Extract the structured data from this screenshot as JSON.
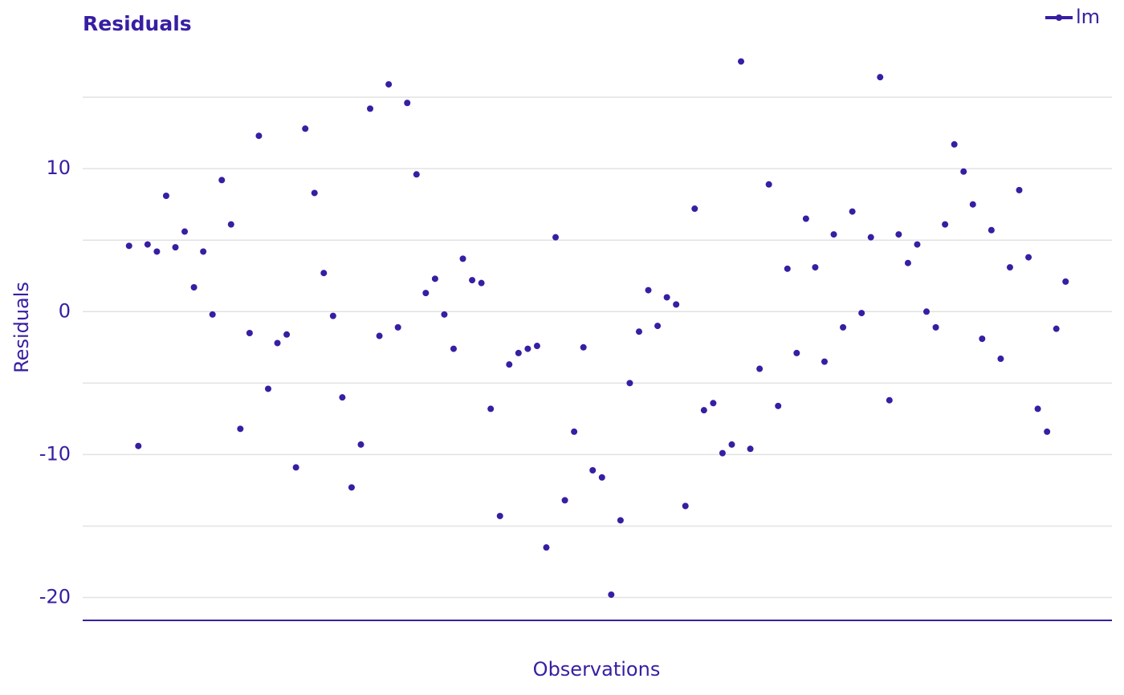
{
  "chart_data": {
    "type": "scatter",
    "title": "Residuals",
    "xlabel": "Observations",
    "ylabel": "Residuals",
    "series": [
      {
        "name": "lm",
        "color": "#371ea3",
        "x": [
          1,
          2,
          3,
          4,
          5,
          6,
          7,
          8,
          9,
          10,
          11,
          12,
          13,
          14,
          15,
          16,
          17,
          18,
          19,
          20,
          21,
          22,
          23,
          24,
          25,
          26,
          27,
          28,
          29,
          30,
          31,
          32,
          33,
          34,
          35,
          36,
          37,
          38,
          39,
          40,
          41,
          42,
          43,
          44,
          45,
          46,
          47,
          48,
          49,
          50,
          51,
          52,
          53,
          54,
          55,
          56,
          57,
          58,
          59,
          60,
          61,
          62,
          63,
          64,
          65,
          66,
          67,
          68,
          69,
          70,
          71,
          72,
          73,
          74,
          75,
          76,
          77,
          78,
          79,
          80,
          81,
          82,
          83,
          84,
          85,
          86,
          87,
          88,
          89,
          90,
          91,
          92,
          93,
          94,
          95,
          96,
          97,
          98,
          99,
          100,
          101,
          102
        ],
        "values": [
          4.6,
          -9.4,
          4.7,
          4.2,
          8.1,
          4.5,
          5.6,
          1.7,
          4.2,
          -0.2,
          9.2,
          6.1,
          -8.2,
          -1.5,
          12.3,
          -5.4,
          -2.2,
          -1.6,
          -10.9,
          12.8,
          8.3,
          2.7,
          -0.3,
          -6.0,
          -12.3,
          -9.3,
          14.2,
          -1.7,
          15.9,
          -1.1,
          14.6,
          9.6,
          1.3,
          2.3,
          -0.2,
          -2.6,
          3.7,
          2.2,
          2.0,
          -6.8,
          -14.3,
          -3.7,
          -2.9,
          -2.6,
          -2.4,
          -16.5,
          5.2,
          -13.2,
          -8.4,
          -2.5,
          -11.1,
          -11.6,
          -19.8,
          -14.6,
          -5.0,
          -1.4,
          1.5,
          -1.0,
          1.0,
          0.5,
          -13.6,
          7.2,
          -6.9,
          -6.4,
          -9.9,
          -9.3,
          17.5,
          -9.6,
          -4.0,
          8.9,
          -6.6,
          3.0,
          -2.9,
          6.5,
          3.1,
          -3.5,
          5.4,
          -1.1,
          7.0,
          -0.1,
          5.2,
          16.4,
          -6.2,
          5.4,
          3.4,
          4.7,
          0.0,
          -1.1,
          6.1,
          11.7,
          9.8,
          7.5,
          -1.9,
          5.7,
          -3.3,
          3.1,
          8.5,
          3.8,
          -6.8,
          -8.4,
          -1.2,
          2.1
        ]
      }
    ],
    "xlim": [
      -4,
      107
    ],
    "ylim": [
      -21.6,
      18.6
    ],
    "yticks": [
      -20,
      -10,
      0,
      10
    ],
    "grid": true,
    "legend": "top-right"
  }
}
